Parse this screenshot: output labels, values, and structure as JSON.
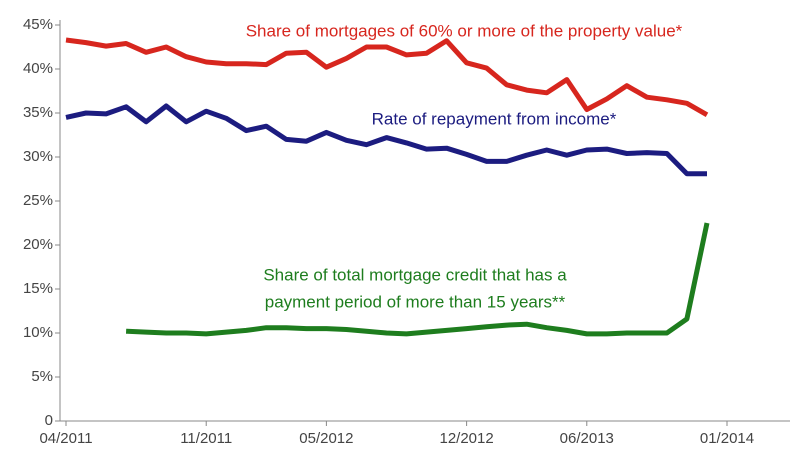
{
  "chart_data": {
    "type": "line",
    "categories": [
      "04/2011",
      null,
      null,
      null,
      null,
      null,
      null,
      "11/2011",
      null,
      null,
      null,
      null,
      null,
      "05/2012",
      null,
      null,
      null,
      null,
      null,
      null,
      "12/2012",
      null,
      null,
      null,
      null,
      null,
      "06/2013",
      null,
      null,
      null,
      null,
      null,
      null,
      "01/2014"
    ],
    "series": [
      {
        "name": "Share of mortgages of 60% or more of the property value*",
        "color": "#d7261e",
        "values": [
          43.3,
          43,
          42.6,
          42.9,
          41.9,
          42.5,
          41.4,
          40.8,
          40.6,
          40.6,
          40.5,
          41.8,
          41.9,
          40.2,
          41.2,
          42.5,
          42.5,
          41.6,
          41.8,
          43.2,
          40.7,
          40.1,
          38.2,
          37.6,
          37.3,
          38.8,
          35.4,
          36.6,
          38.1,
          36.8,
          36.5,
          36.1,
          34.8,
          null
        ]
      },
      {
        "name": "Rate of repayment from income*",
        "color": "#1c1c80",
        "values": [
          34.5,
          35,
          34.9,
          35.7,
          34,
          35.8,
          34,
          35.2,
          34.4,
          33,
          33.5,
          32,
          31.8,
          32.8,
          31.9,
          31.4,
          32.2,
          31.6,
          30.9,
          31,
          30.3,
          29.5,
          29.5,
          30.2,
          30.8,
          30.2,
          30.8,
          30.9,
          30.4,
          30.5,
          30.4,
          28.1,
          28.1,
          null
        ]
      },
      {
        "name": "Share of total mortgage credit that has a payment period of more than 15 years**",
        "color": "#1e7d1e",
        "values": [
          null,
          null,
          null,
          10.2,
          10.1,
          10.0,
          10.0,
          9.9,
          10.1,
          10.3,
          10.6,
          10.6,
          10.5,
          10.5,
          10.4,
          10.2,
          10.0,
          9.9,
          10.1,
          10.3,
          10.5,
          10.7,
          10.9,
          11.0,
          10.6,
          10.3,
          9.9,
          9.9,
          10.0,
          10.0,
          10.0,
          11.6,
          22.5,
          null
        ]
      }
    ],
    "annotations": [
      "Share of mortgages of 60% or more of the property value*",
      "Rate of repayment from income*",
      "Share of total mortgage credit that has a",
      "payment period of more than 15 years**"
    ],
    "ylim": [
      0,
      45
    ],
    "yticks": [
      0,
      {
        "value": 5,
        "label": "5%"
      },
      {
        "value": 10,
        "label": "10%"
      },
      {
        "value": 15,
        "label": "15%"
      },
      {
        "value": 20,
        "label": "20%"
      },
      {
        "value": 25,
        "label": "25%"
      },
      {
        "value": 30,
        "label": "30%"
      },
      {
        "value": 35,
        "label": "35%"
      },
      {
        "value": 40,
        "label": "40%"
      },
      {
        "value": 45,
        "label": "45%"
      }
    ],
    "grid": false
  }
}
